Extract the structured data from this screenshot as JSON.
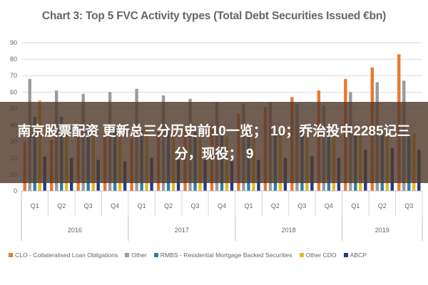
{
  "chart_data": {
    "type": "bar",
    "title": "Chart 3: Top 5 FVC Activity types (Total Debt Securities Issued €bn)",
    "categories": [
      "Q1",
      "Q2",
      "Q3",
      "Q4",
      "Q1",
      "Q2",
      "Q3",
      "Q4",
      "Q1",
      "Q2",
      "Q3",
      "Q4",
      "Q1",
      "Q2",
      "Q3"
    ],
    "years": [
      {
        "label": "2016",
        "span": 4
      },
      {
        "label": "2017",
        "span": 4
      },
      {
        "label": "2018",
        "span": 4
      },
      {
        "label": "2019",
        "span": 3
      }
    ],
    "ylim": [
      0,
      90
    ],
    "yticks": [
      0,
      10,
      20,
      30,
      40,
      50,
      60,
      70,
      80,
      90
    ],
    "grid": true,
    "legend_position": "bottom",
    "series": [
      {
        "name": "CLO - Collateralised Loan Obligations",
        "color": "#E8792E",
        "values": [
          30,
          31,
          33,
          34,
          32,
          36,
          38,
          40,
          47,
          51,
          57,
          61,
          68,
          75,
          83
        ]
      },
      {
        "name": "Other",
        "color": "#9B9B9B",
        "values": [
          68,
          61,
          59,
          60,
          62,
          58,
          56,
          54,
          53,
          54,
          53,
          52,
          60,
          66,
          67
        ]
      },
      {
        "name": "RMBS - Residential Mortgage Backed Securities",
        "color": "#2E7FA6",
        "values": [
          45,
          45,
          40,
          38,
          37,
          37,
          36,
          35,
          36,
          37,
          38,
          36,
          35,
          36,
          35
        ]
      },
      {
        "name": "Other CDO",
        "color": "#E8B829",
        "values": [
          55,
          37,
          34,
          34,
          38,
          36,
          34,
          33,
          33,
          34,
          33,
          34,
          34,
          35,
          35
        ]
      },
      {
        "name": "ABCP",
        "color": "#1F3C88",
        "values": [
          21,
          20,
          19,
          18,
          20,
          19,
          19,
          18,
          19,
          20,
          21,
          20,
          25,
          26,
          25
        ]
      }
    ]
  },
  "overlay": {
    "text": "南京股票配资 更新总三分历史前10一览； 10；乔治投中2285记三分，现役； 9"
  }
}
